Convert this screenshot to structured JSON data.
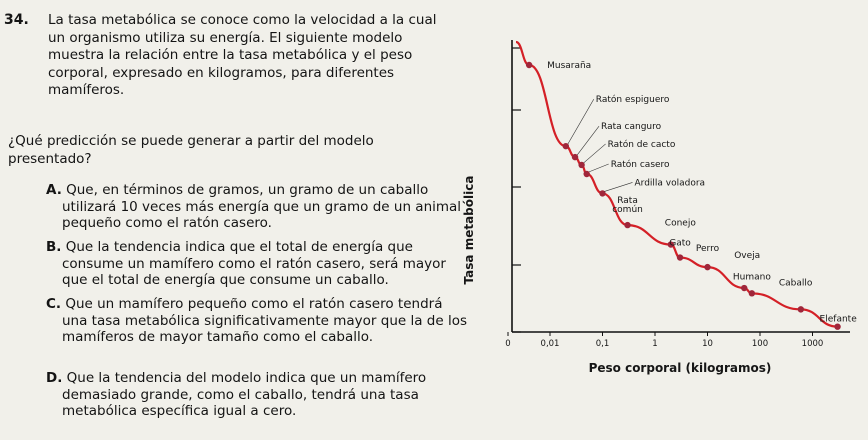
{
  "question": {
    "number": "34.",
    "stem": "La tasa metabólica se conoce como la velocidad a la cual un organismo utiliza su energía. El siguiente modelo muestra la relación entre la tasa metabólica y el peso corporal, expresado en kilogramos, para diferentes mamíferos.",
    "prompt": "¿Qué predicción se puede generar a partir del modelo presentado?",
    "options": [
      {
        "letter": "A.",
        "text": "Que, en términos de gramos, un gramo de un caballo utilizará 10 veces más energía que un gramo de un animal pequeño como el ratón casero."
      },
      {
        "letter": "B.",
        "text": "Que la tendencia indica que el total de energía que consume un mamífero como el ratón casero, será mayor que el total de energía que consume un caballo."
      },
      {
        "letter": "C.",
        "text": "Que un mamífero pequeño como el ratón casero tendrá una tasa metabólica significativamente mayor que la de los mamíferos de mayor tamaño como el caballo."
      },
      {
        "letter": "D.",
        "text": "Que la tendencia del modelo indica que un mamífero demasiado grande, como el caballo, tendrá una tasa metabólica específica igual a cero."
      }
    ]
  },
  "chart_data": {
    "type": "line",
    "xlabel": "Peso corporal (kilogramos)",
    "ylabel": "Tasa metabólica",
    "x_ticks": [
      "0",
      "0,01",
      "0,1",
      "1",
      "10",
      "100",
      "1000"
    ],
    "x_scale": "log",
    "y_ticks": [],
    "curve_color": "#d42027",
    "point_color": "#a0263a",
    "points": [
      {
        "label": "Musaraña",
        "x": 0.004,
        "y": 60
      },
      {
        "label": "Ratón espiguero",
        "x": 0.02,
        "y": 14
      },
      {
        "label": "Rata canguro",
        "x": 0.03,
        "y": 11.5
      },
      {
        "label": "Ratón de cacto",
        "x": 0.04,
        "y": 10
      },
      {
        "label": "Ratón casero",
        "x": 0.05,
        "y": 8.5
      },
      {
        "label": "Ardilla voladora",
        "x": 0.1,
        "y": 6
      },
      {
        "label": "Rata común",
        "x": 0.3,
        "y": 3.4
      },
      {
        "label": "Conejo",
        "x": 2,
        "y": 2.4
      },
      {
        "label": "Gato",
        "x": 3,
        "y": 1.9
      },
      {
        "label": "Perro",
        "x": 10,
        "y": 1.6
      },
      {
        "label": "Oveja",
        "x": 50,
        "y": 1.1
      },
      {
        "label": "Humano",
        "x": 70,
        "y": 1.0
      },
      {
        "label": "Caballo",
        "x": 600,
        "y": 0.75
      },
      {
        "label": "Elefante",
        "x": 3000,
        "y": 0.55
      }
    ]
  }
}
